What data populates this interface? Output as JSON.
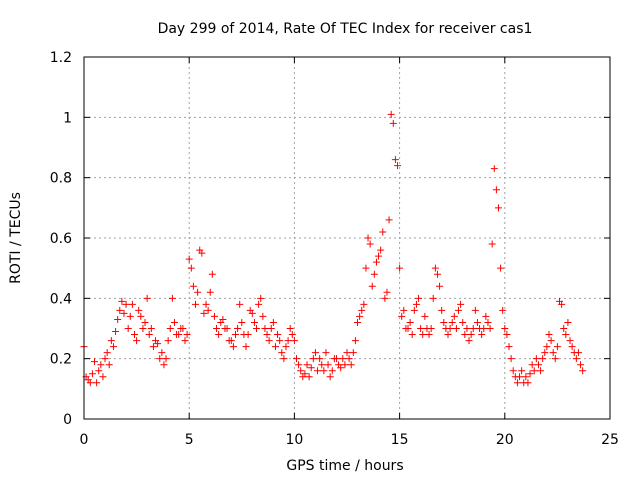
{
  "chart_data": {
    "type": "scatter",
    "title": "Day 299 of 2014, Rate Of TEC Index for receiver cas1",
    "xlabel": "GPS time / hours",
    "ylabel": "ROTI / TECUs",
    "xlim": [
      0,
      25
    ],
    "ylim": [
      0,
      1.2
    ],
    "x_ticks": [
      0,
      5,
      10,
      15,
      20,
      25
    ],
    "y_ticks": [
      0,
      0.2,
      0.4,
      0.6,
      0.8,
      1,
      1.2
    ],
    "x_tick_labels": [
      "0",
      "5",
      "10",
      "15",
      "20",
      "25"
    ],
    "y_tick_labels": [
      "0",
      "0.2",
      "0.4",
      "0.6",
      "0.8",
      "1",
      "1.2"
    ],
    "grid": true,
    "marker": "+",
    "color": "#ff0000",
    "series": [
      {
        "name": "ROTI",
        "x": [
          0.0,
          0.1,
          0.2,
          0.3,
          0.4,
          0.5,
          0.6,
          0.7,
          0.8,
          0.9,
          1.0,
          1.1,
          1.2,
          1.3,
          1.4,
          1.5,
          1.6,
          1.7,
          1.8,
          1.9,
          2.0,
          2.1,
          2.2,
          2.3,
          2.4,
          2.5,
          2.6,
          2.7,
          2.8,
          2.9,
          3.0,
          3.1,
          3.2,
          3.3,
          3.4,
          3.5,
          3.6,
          3.7,
          3.8,
          3.9,
          4.0,
          4.1,
          4.2,
          4.3,
          4.4,
          4.5,
          4.6,
          4.7,
          4.8,
          4.9,
          5.0,
          5.1,
          5.2,
          5.3,
          5.4,
          5.5,
          5.6,
          5.7,
          5.8,
          5.9,
          6.0,
          6.1,
          6.2,
          6.3,
          6.4,
          6.5,
          6.6,
          6.7,
          6.8,
          6.9,
          7.0,
          7.1,
          7.2,
          7.3,
          7.4,
          7.5,
          7.6,
          7.7,
          7.8,
          7.9,
          8.0,
          8.1,
          8.2,
          8.3,
          8.4,
          8.5,
          8.6,
          8.7,
          8.8,
          8.9,
          9.0,
          9.1,
          9.2,
          9.3,
          9.4,
          9.5,
          9.6,
          9.7,
          9.8,
          9.9,
          10.0,
          10.1,
          10.2,
          10.3,
          10.4,
          10.5,
          10.6,
          10.7,
          10.8,
          10.9,
          11.0,
          11.1,
          11.2,
          11.3,
          11.4,
          11.5,
          11.6,
          11.7,
          11.8,
          11.9,
          12.0,
          12.1,
          12.2,
          12.3,
          12.4,
          12.5,
          12.6,
          12.7,
          12.8,
          12.9,
          13.0,
          13.1,
          13.2,
          13.3,
          13.4,
          13.5,
          13.6,
          13.7,
          13.8,
          13.9,
          14.0,
          14.1,
          14.2,
          14.3,
          14.4,
          14.5,
          14.6,
          14.7,
          14.8,
          14.9,
          15.0,
          15.1,
          15.2,
          15.3,
          15.4,
          15.5,
          15.6,
          15.7,
          15.8,
          15.9,
          16.0,
          16.1,
          16.2,
          16.3,
          16.4,
          16.5,
          16.6,
          16.7,
          16.8,
          16.9,
          17.0,
          17.1,
          17.2,
          17.3,
          17.4,
          17.5,
          17.6,
          17.7,
          17.8,
          17.9,
          18.0,
          18.1,
          18.2,
          18.3,
          18.4,
          18.5,
          18.6,
          18.7,
          18.8,
          18.9,
          19.0,
          19.1,
          19.2,
          19.3,
          19.4,
          19.5,
          19.6,
          19.7,
          19.8,
          19.9,
          20.0,
          20.1,
          20.2,
          20.3,
          20.4,
          20.5,
          20.6,
          20.7,
          20.8,
          20.9,
          21.0,
          21.1,
          21.2,
          21.3,
          21.4,
          21.5,
          21.6,
          21.7,
          21.8,
          21.9,
          22.0,
          22.1,
          22.2,
          22.3,
          22.4,
          22.5,
          22.6,
          22.7,
          22.8,
          22.9,
          23.0,
          23.1,
          23.2,
          23.3,
          23.4,
          23.5,
          23.6,
          23.7
        ],
        "y": [
          0.24,
          0.14,
          0.13,
          0.12,
          0.15,
          0.19,
          0.12,
          0.16,
          0.18,
          0.14,
          0.2,
          0.22,
          0.18,
          0.26,
          0.24,
          0.29,
          0.33,
          0.36,
          0.39,
          0.35,
          0.38,
          0.3,
          0.34,
          0.38,
          0.28,
          0.26,
          0.36,
          0.34,
          0.3,
          0.32,
          0.4,
          0.28,
          0.3,
          0.24,
          0.26,
          0.25,
          0.2,
          0.22,
          0.18,
          0.2,
          0.26,
          0.3,
          0.4,
          0.32,
          0.28,
          0.28,
          0.3,
          0.3,
          0.26,
          0.28,
          0.53,
          0.5,
          0.44,
          0.38,
          0.42,
          0.56,
          0.55,
          0.35,
          0.38,
          0.36,
          0.42,
          0.48,
          0.34,
          0.3,
          0.28,
          0.32,
          0.33,
          0.3,
          0.3,
          0.26,
          0.26,
          0.24,
          0.28,
          0.3,
          0.38,
          0.32,
          0.28,
          0.24,
          0.28,
          0.36,
          0.35,
          0.32,
          0.3,
          0.38,
          0.4,
          0.34,
          0.3,
          0.28,
          0.26,
          0.3,
          0.32,
          0.24,
          0.28,
          0.26,
          0.22,
          0.2,
          0.24,
          0.26,
          0.3,
          0.28,
          0.26,
          0.2,
          0.18,
          0.16,
          0.14,
          0.15,
          0.18,
          0.14,
          0.17,
          0.2,
          0.22,
          0.16,
          0.2,
          0.18,
          0.16,
          0.22,
          0.18,
          0.14,
          0.16,
          0.2,
          0.2,
          0.18,
          0.17,
          0.2,
          0.18,
          0.22,
          0.2,
          0.18,
          0.22,
          0.26,
          0.32,
          0.34,
          0.36,
          0.38,
          0.5,
          0.6,
          0.58,
          0.44,
          0.48,
          0.52,
          0.54,
          0.56,
          0.62,
          0.4,
          0.42,
          0.66,
          1.01,
          0.98,
          0.86,
          0.84,
          0.5,
          0.34,
          0.36,
          0.3,
          0.3,
          0.32,
          0.28,
          0.36,
          0.38,
          0.4,
          0.3,
          0.28,
          0.34,
          0.3,
          0.28,
          0.3,
          0.4,
          0.5,
          0.48,
          0.44,
          0.36,
          0.32,
          0.3,
          0.28,
          0.3,
          0.32,
          0.34,
          0.3,
          0.36,
          0.38,
          0.32,
          0.28,
          0.3,
          0.26,
          0.28,
          0.3,
          0.36,
          0.32,
          0.3,
          0.28,
          0.3,
          0.34,
          0.32,
          0.3,
          0.58,
          0.83,
          0.76,
          0.7,
          0.5,
          0.36,
          0.3,
          0.28,
          0.24,
          0.2,
          0.16,
          0.14,
          0.12,
          0.14,
          0.16,
          0.12,
          0.14,
          0.12,
          0.15,
          0.18,
          0.16,
          0.2,
          0.18,
          0.16,
          0.2,
          0.22,
          0.24,
          0.28,
          0.26,
          0.22,
          0.2,
          0.24,
          0.39,
          0.38,
          0.3,
          0.28,
          0.32,
          0.26,
          0.24,
          0.22,
          0.2,
          0.22,
          0.18,
          0.16
        ]
      }
    ]
  }
}
